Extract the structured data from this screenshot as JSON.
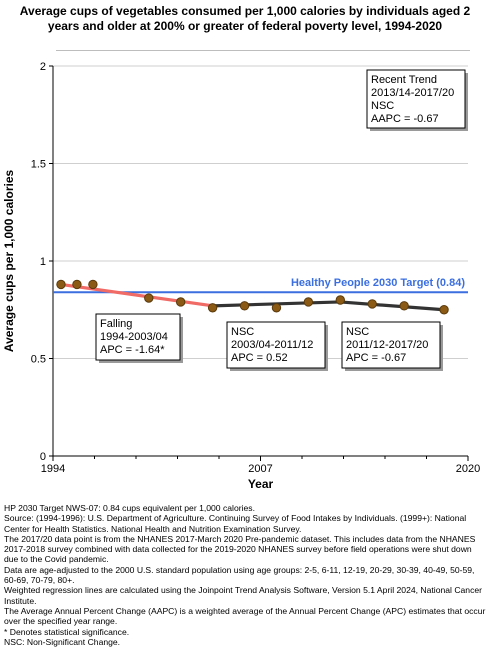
{
  "chart_data": {
    "type": "line",
    "title": "Average cups of vegetables consumed per 1,000 calories by individuals aged 2 years and older at 200% or greater of federal poverty level, 1994-2020",
    "xlabel": "Year",
    "ylabel": "Average cups per 1,000 calories",
    "xlim": [
      1994,
      2020
    ],
    "ylim": [
      0,
      2
    ],
    "x_ticks": [
      "1994",
      "2007",
      "2020"
    ],
    "y_ticks": [
      "0",
      "0.5",
      "1",
      "1.5",
      "2"
    ],
    "grid": "horizontal",
    "observed": {
      "x": [
        1994.5,
        1995.5,
        1996.5,
        2000,
        2002,
        2004,
        2006,
        2008,
        2010,
        2012,
        2014,
        2016,
        2018.5
      ],
      "y": [
        0.88,
        0.88,
        0.88,
        0.81,
        0.79,
        0.76,
        0.77,
        0.76,
        0.79,
        0.8,
        0.78,
        0.77,
        0.75
      ]
    },
    "trend_segments": [
      {
        "x": [
          1994.5,
          2004
        ],
        "y": [
          0.88,
          0.77
        ],
        "color": "#f06a66"
      },
      {
        "x": [
          2004,
          2012
        ],
        "y": [
          0.77,
          0.79
        ],
        "color": "#333333"
      },
      {
        "x": [
          2012,
          2018.5
        ],
        "y": [
          0.79,
          0.75
        ],
        "color": "#333333"
      }
    ],
    "target": {
      "value": 0.84,
      "label": "Healthy People 2030 Target (0.84)",
      "color": "#3b6fe0"
    },
    "annotations": [
      {
        "lines": [
          "Recent Trend",
          "2013/14-2017/20",
          "NSC",
          "AAPC = -0.67"
        ],
        "position": "top-right"
      },
      {
        "lines": [
          "Falling",
          "1994-2003/04",
          "APC = -1.64*"
        ],
        "position": "below-left"
      },
      {
        "lines": [
          "NSC",
          "2003/04-2011/12",
          "APC =  0.52"
        ],
        "position": "below-middle"
      },
      {
        "lines": [
          "NSC",
          "2011/12-2017/20",
          "APC = -0.67"
        ],
        "position": "below-right"
      }
    ],
    "colors": {
      "marker_fill": "#8b5a14",
      "marker_stroke": "#5a3a0c",
      "axis": "#000000",
      "grid": "#cfcfcf"
    }
  },
  "notes": [
    "HP 2030 Target NWS-07: 0.84 cups equivalent per 1,000 calories.",
    "Source: (1994-1996): U.S. Department of Agriculture. Continuing Survey of Food Intakes by Individuals. (1999+): National Center for Health Statistics. National Health and Nutrition Examination Survey.",
    "The 2017/20 data point is from the NHANES 2017-March 2020 Pre-pandemic dataset. This includes data from the NHANES 2017-2018 survey combined with data collected for the 2019-2020 NHANES survey before field operations were shut down due to the Covid pandemic.",
    "Data are age-adjusted to the 2000 U.S. standard population using age groups: 2-5, 6-11, 12-19, 20-29, 30-39, 40-49, 50-59, 60-69, 70-79, 80+.",
    "Weighted regression lines are calculated using the Joinpoint Trend Analysis Software, Version 5.1 April 2024, National Cancer Institute.",
    "The Average Annual Percent Change (AAPC) is a weighted average of the Annual Percent Change (APC) estimates that occur over the specified year range.",
    "* Denotes statistical significance.",
    "NSC: Non-Significant Change."
  ]
}
